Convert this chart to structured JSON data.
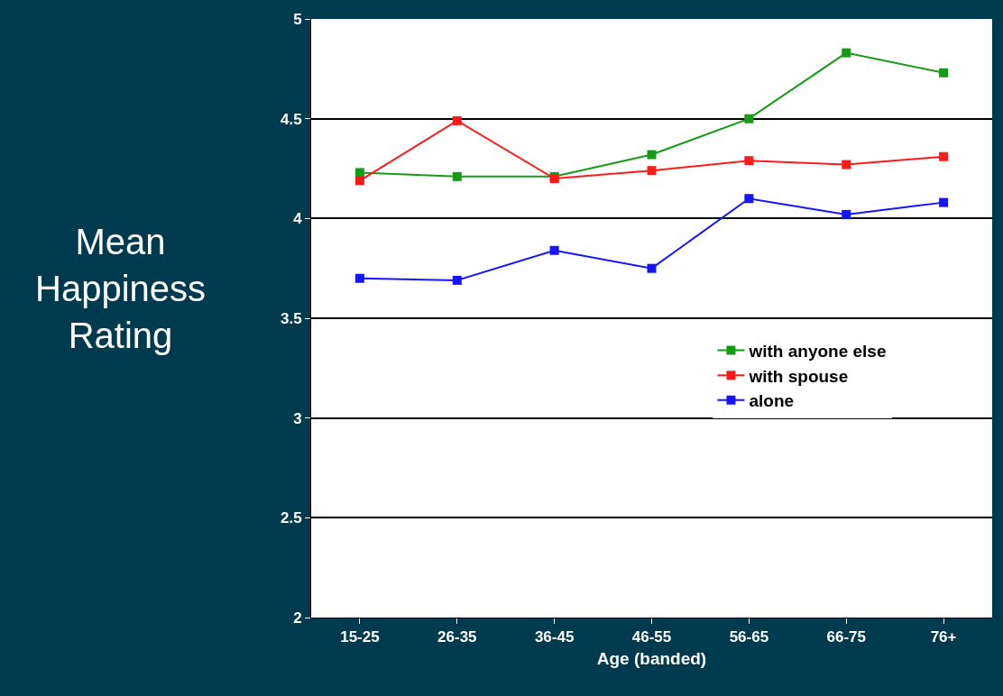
{
  "chart_data": {
    "type": "line",
    "xlabel": "Age (banded)",
    "ylabel": "Mean Happiness Rating",
    "categories": [
      "15-25",
      "26-35",
      "36-45",
      "46-55",
      "56-65",
      "66-75",
      "76+"
    ],
    "series": [
      {
        "name": "with anyone else",
        "color": "#169b16",
        "values": [
          4.23,
          4.21,
          4.21,
          4.32,
          4.5,
          4.83,
          4.73
        ]
      },
      {
        "name": "with spouse",
        "color": "#ff1a1a",
        "values": [
          4.19,
          4.49,
          4.2,
          4.24,
          4.29,
          4.27,
          4.31
        ]
      },
      {
        "name": "alone",
        "color": "#1414ff",
        "values": [
          3.7,
          3.69,
          3.84,
          3.75,
          4.1,
          4.02,
          4.08
        ]
      }
    ],
    "ylim": [
      2,
      5
    ],
    "yticks": [
      2,
      2.5,
      3,
      3.5,
      4,
      4.5,
      5
    ],
    "grid": "y",
    "legend": "right",
    "marker": "square",
    "line_style": "solid"
  }
}
